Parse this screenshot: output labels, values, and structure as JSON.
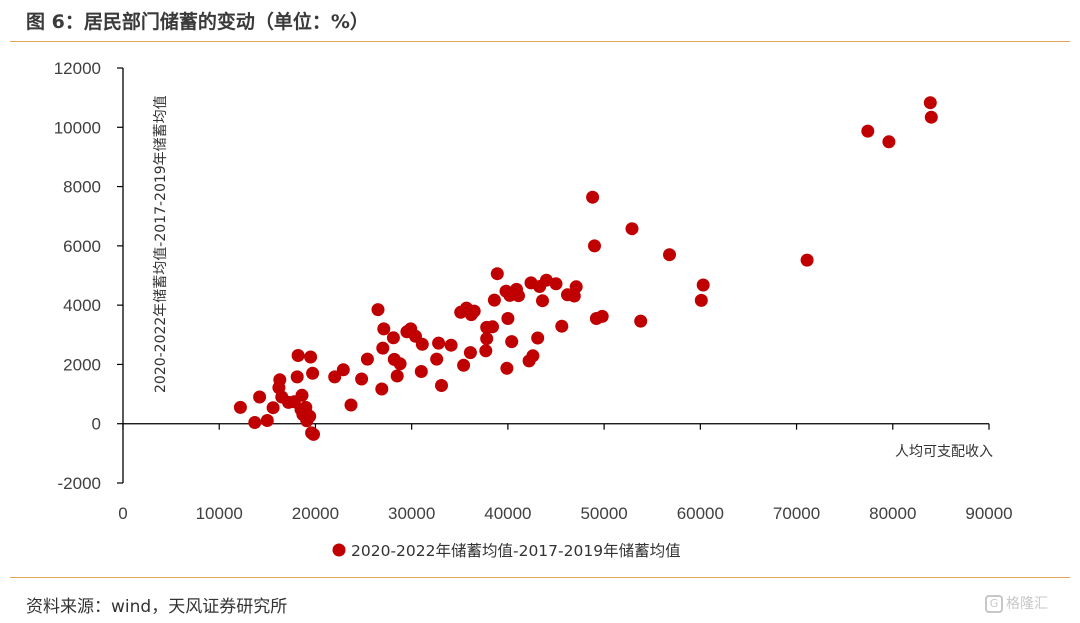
{
  "header": {
    "title": "图 6：居民部门储蓄的变动（单位：%）"
  },
  "footer": {
    "source": "资料来源：wind，天风证券研究所"
  },
  "watermark": {
    "text": "格隆汇",
    "icon": "gelonghui-logo-icon"
  },
  "colors": {
    "marker": "#c00000",
    "rule": "#e4a458",
    "axis": "#000000"
  },
  "chart_data": {
    "type": "scatter",
    "xlabel": "人均可支配收入",
    "ylabel": "2020-2022年储蓄均值-2017-2019年储蓄均值",
    "xlim": [
      0,
      90000
    ],
    "ylim": [
      -2000,
      12000
    ],
    "x_ticks": [
      0,
      10000,
      20000,
      30000,
      40000,
      50000,
      60000,
      70000,
      80000,
      90000
    ],
    "y_ticks": [
      -2000,
      0,
      2000,
      4000,
      6000,
      8000,
      10000,
      12000
    ],
    "grid": false,
    "legend_position": "bottom",
    "series": [
      {
        "name": "2020-2022年储蓄均值-2017-2019年储蓄均值",
        "points": [
          [
            12200,
            550
          ],
          [
            13700,
            40
          ],
          [
            14200,
            900
          ],
          [
            15000,
            110
          ],
          [
            15600,
            540
          ],
          [
            16200,
            1220
          ],
          [
            16300,
            1480
          ],
          [
            16500,
            900
          ],
          [
            17200,
            720
          ],
          [
            17800,
            740
          ],
          [
            18100,
            1580
          ],
          [
            18200,
            2300
          ],
          [
            18600,
            960
          ],
          [
            18500,
            480
          ],
          [
            18700,
            310
          ],
          [
            19000,
            550
          ],
          [
            19100,
            100
          ],
          [
            19400,
            250
          ],
          [
            19500,
            2250
          ],
          [
            19700,
            1700
          ],
          [
            19600,
            -310
          ],
          [
            19800,
            -360
          ],
          [
            22000,
            1580
          ],
          [
            22900,
            1820
          ],
          [
            23700,
            630
          ],
          [
            24800,
            1510
          ],
          [
            25400,
            2180
          ],
          [
            26500,
            3850
          ],
          [
            26900,
            1170
          ],
          [
            27100,
            3200
          ],
          [
            27000,
            2550
          ],
          [
            28100,
            2900
          ],
          [
            28200,
            2170
          ],
          [
            28500,
            1610
          ],
          [
            28800,
            2020
          ],
          [
            29500,
            3100
          ],
          [
            29900,
            3200
          ],
          [
            30400,
            2950
          ],
          [
            31000,
            1760
          ],
          [
            31100,
            2680
          ],
          [
            32600,
            2180
          ],
          [
            32800,
            2720
          ],
          [
            33100,
            1290
          ],
          [
            34100,
            2650
          ],
          [
            35100,
            3760
          ],
          [
            35700,
            3900
          ],
          [
            35400,
            1970
          ],
          [
            36100,
            2400
          ],
          [
            36200,
            3680
          ],
          [
            36500,
            3800
          ],
          [
            37700,
            2460
          ],
          [
            37800,
            3250
          ],
          [
            37800,
            2870
          ],
          [
            38400,
            3270
          ],
          [
            38600,
            4170
          ],
          [
            38900,
            5060
          ],
          [
            39800,
            4470
          ],
          [
            40000,
            3550
          ],
          [
            40200,
            4330
          ],
          [
            40400,
            2770
          ],
          [
            39900,
            1870
          ],
          [
            40900,
            4530
          ],
          [
            41100,
            4320
          ],
          [
            42200,
            2120
          ],
          [
            42400,
            4750
          ],
          [
            42600,
            2290
          ],
          [
            43100,
            2890
          ],
          [
            43300,
            4630
          ],
          [
            43600,
            4150
          ],
          [
            44000,
            4840
          ],
          [
            45000,
            4720
          ],
          [
            45600,
            3290
          ],
          [
            46200,
            4350
          ],
          [
            46900,
            4310
          ],
          [
            47100,
            4620
          ],
          [
            48800,
            7640
          ],
          [
            49000,
            6000
          ],
          [
            49200,
            3550
          ],
          [
            49800,
            3620
          ],
          [
            52900,
            6580
          ],
          [
            53800,
            3460
          ],
          [
            56800,
            5700
          ],
          [
            60100,
            4160
          ],
          [
            60300,
            4680
          ],
          [
            71100,
            5520
          ],
          [
            77400,
            9870
          ],
          [
            79600,
            9510
          ],
          [
            83900,
            10830
          ],
          [
            84000,
            10340
          ]
        ]
      }
    ]
  }
}
